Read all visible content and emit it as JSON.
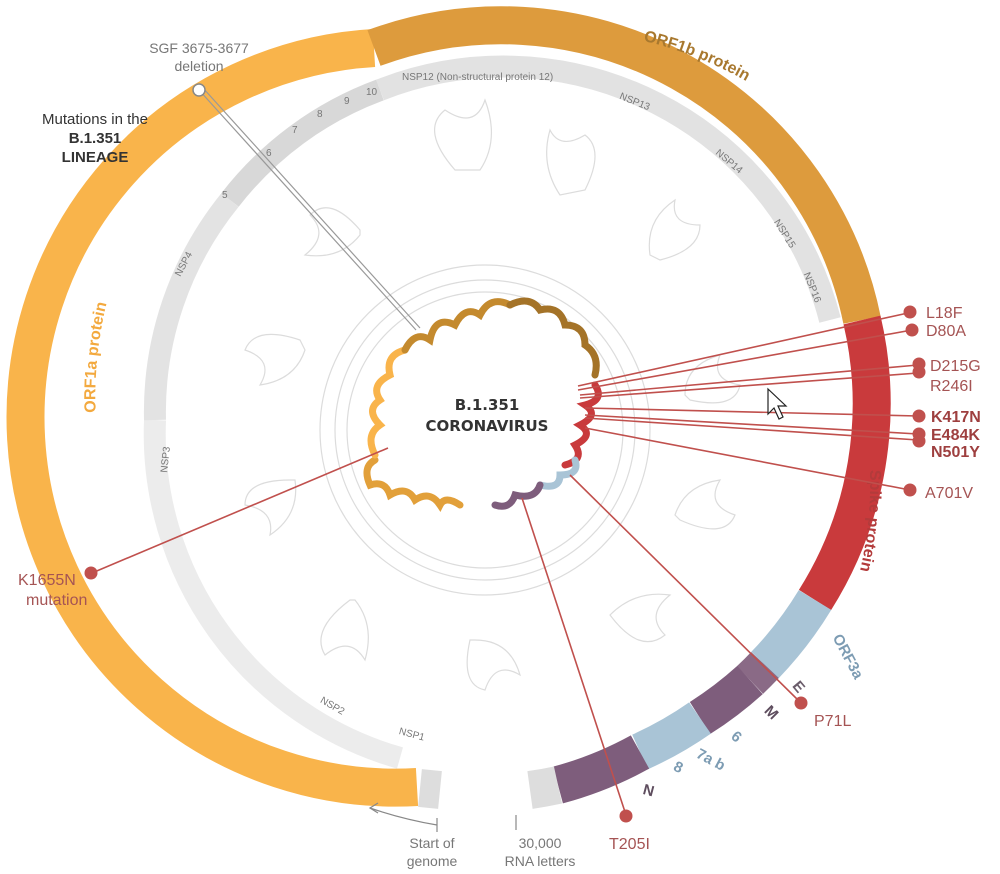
{
  "title": {
    "intro": "Mutations in the",
    "lineage": "B.1.351",
    "lineage_word": "LINEAGE"
  },
  "center": {
    "line1": "B.1.351",
    "line2": "CORONAVIRUS"
  },
  "proteins": {
    "orf1a": "ORF1a protein",
    "orf1b": "ORF1b protein",
    "spike": "Spike protein",
    "orf3a": "ORF3a",
    "e": "E",
    "m": "M",
    "six": "6",
    "seven_a_b": "7a b",
    "eight": "8",
    "n": "N"
  },
  "nsp": {
    "nsp1": "NSP1",
    "nsp2": "NSP2",
    "nsp3": "NSP3",
    "nsp4": "NSP4",
    "n5": "5",
    "n6": "6",
    "n7": "7",
    "n8": "8",
    "n9": "9",
    "n10": "10",
    "nsp12": "NSP12 (Non-structural protein 12)",
    "nsp13": "NSP13",
    "nsp14": "NSP14",
    "nsp15": "NSP15",
    "nsp16": "NSP16"
  },
  "mutations": {
    "l18f": "L18F",
    "d80a": "D80A",
    "d215g": "D215G",
    "r246i": "R246I",
    "k417n": "K417N",
    "e484k": "E484K",
    "n501y": "N501Y",
    "a701v": "A701V",
    "p71l": "P71L",
    "t205i": "T205I",
    "k1655n": "K1655N",
    "k1655n_sub": "mutation"
  },
  "annotations": {
    "sgf_line1": "SGF 3675-3677",
    "sgf_line2": "deletion",
    "start_line1": "Start of",
    "start_line2": "genome",
    "rna_line1": "30,000",
    "rna_line2": "RNA letters"
  },
  "colors": {
    "orf1a": "#f9b44b",
    "orf1b": "#dd9b3d",
    "spike": "#c93a3c",
    "orf3a": "#a9c4d6",
    "m": "#7e5d7c",
    "n": "#7e5d7c",
    "mutation": "#c0504d"
  }
}
